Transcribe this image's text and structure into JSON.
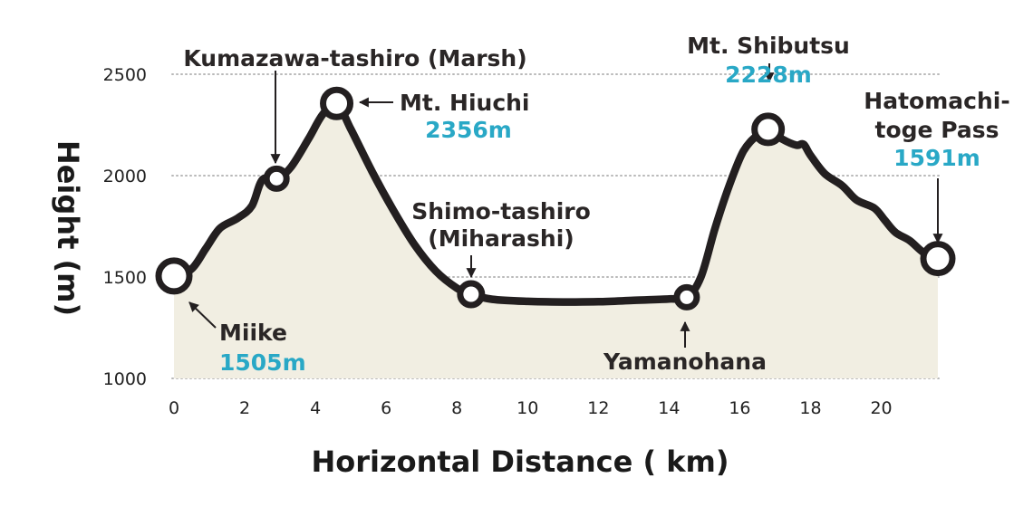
{
  "chart_data": {
    "type": "area",
    "xlabel": "Horizontal Distance ( km)",
    "ylabel": "Height (m)",
    "xlim": [
      0,
      21.6
    ],
    "ylim": [
      1000,
      2500
    ],
    "xticks": [
      0,
      2,
      4,
      6,
      8,
      10,
      12,
      14,
      16,
      18,
      20
    ],
    "yticks": [
      1000,
      1500,
      2000,
      2500
    ],
    "grid": "dotted horizontal",
    "colors": {
      "line": "#231f20",
      "fill": "#f1eee2",
      "grid": "#b8b8b8",
      "elevation_text": "#29a8c6"
    },
    "profile": [
      [
        0,
        1505
      ],
      [
        0.5,
        1540
      ],
      [
        0.9,
        1640
      ],
      [
        1.3,
        1740
      ],
      [
        1.8,
        1790
      ],
      [
        2.2,
        1850
      ],
      [
        2.5,
        1980
      ],
      [
        2.9,
        1985
      ],
      [
        3.3,
        2040
      ],
      [
        3.8,
        2180
      ],
      [
        4.2,
        2300
      ],
      [
        4.6,
        2356
      ],
      [
        5.0,
        2230
      ],
      [
        5.6,
        2020
      ],
      [
        6.2,
        1830
      ],
      [
        6.8,
        1660
      ],
      [
        7.4,
        1530
      ],
      [
        8.0,
        1445
      ],
      [
        8.4,
        1415
      ],
      [
        9.0,
        1390
      ],
      [
        10.0,
        1380
      ],
      [
        11.0,
        1377
      ],
      [
        12.0,
        1378
      ],
      [
        13.0,
        1385
      ],
      [
        14.0,
        1392
      ],
      [
        14.5,
        1400
      ],
      [
        14.9,
        1500
      ],
      [
        15.3,
        1740
      ],
      [
        15.7,
        1950
      ],
      [
        16.1,
        2120
      ],
      [
        16.5,
        2200
      ],
      [
        16.8,
        2228
      ],
      [
        17.2,
        2180
      ],
      [
        17.6,
        2150
      ],
      [
        17.8,
        2155
      ],
      [
        18.0,
        2100
      ],
      [
        18.4,
        2010
      ],
      [
        18.9,
        1950
      ],
      [
        19.3,
        1880
      ],
      [
        19.8,
        1840
      ],
      [
        20.1,
        1780
      ],
      [
        20.4,
        1720
      ],
      [
        20.8,
        1680
      ],
      [
        21.2,
        1620
      ],
      [
        21.6,
        1591
      ]
    ],
    "points": [
      {
        "name": "Miike",
        "x": 0,
        "y": 1505,
        "elevation_label": "1505m"
      },
      {
        "name": "Kumazawa-tashiro (Marsh)",
        "x": 2.9,
        "y": 1985
      },
      {
        "name": "Mt. Hiuchi",
        "x": 4.6,
        "y": 2356,
        "elevation_label": "2356m"
      },
      {
        "name_lines": [
          "Shimo-tashiro",
          "(Miharashi)"
        ],
        "x": 8.4,
        "y": 1415
      },
      {
        "name": "Yamanohana",
        "x": 14.5,
        "y": 1400
      },
      {
        "name": "Mt. Shibutsu",
        "x": 16.8,
        "y": 2228,
        "elevation_label": "2228m"
      },
      {
        "name_lines": [
          "Hatomachi-",
          "toge Pass"
        ],
        "x": 21.6,
        "y": 1591,
        "elevation_label": "1591m"
      }
    ]
  }
}
